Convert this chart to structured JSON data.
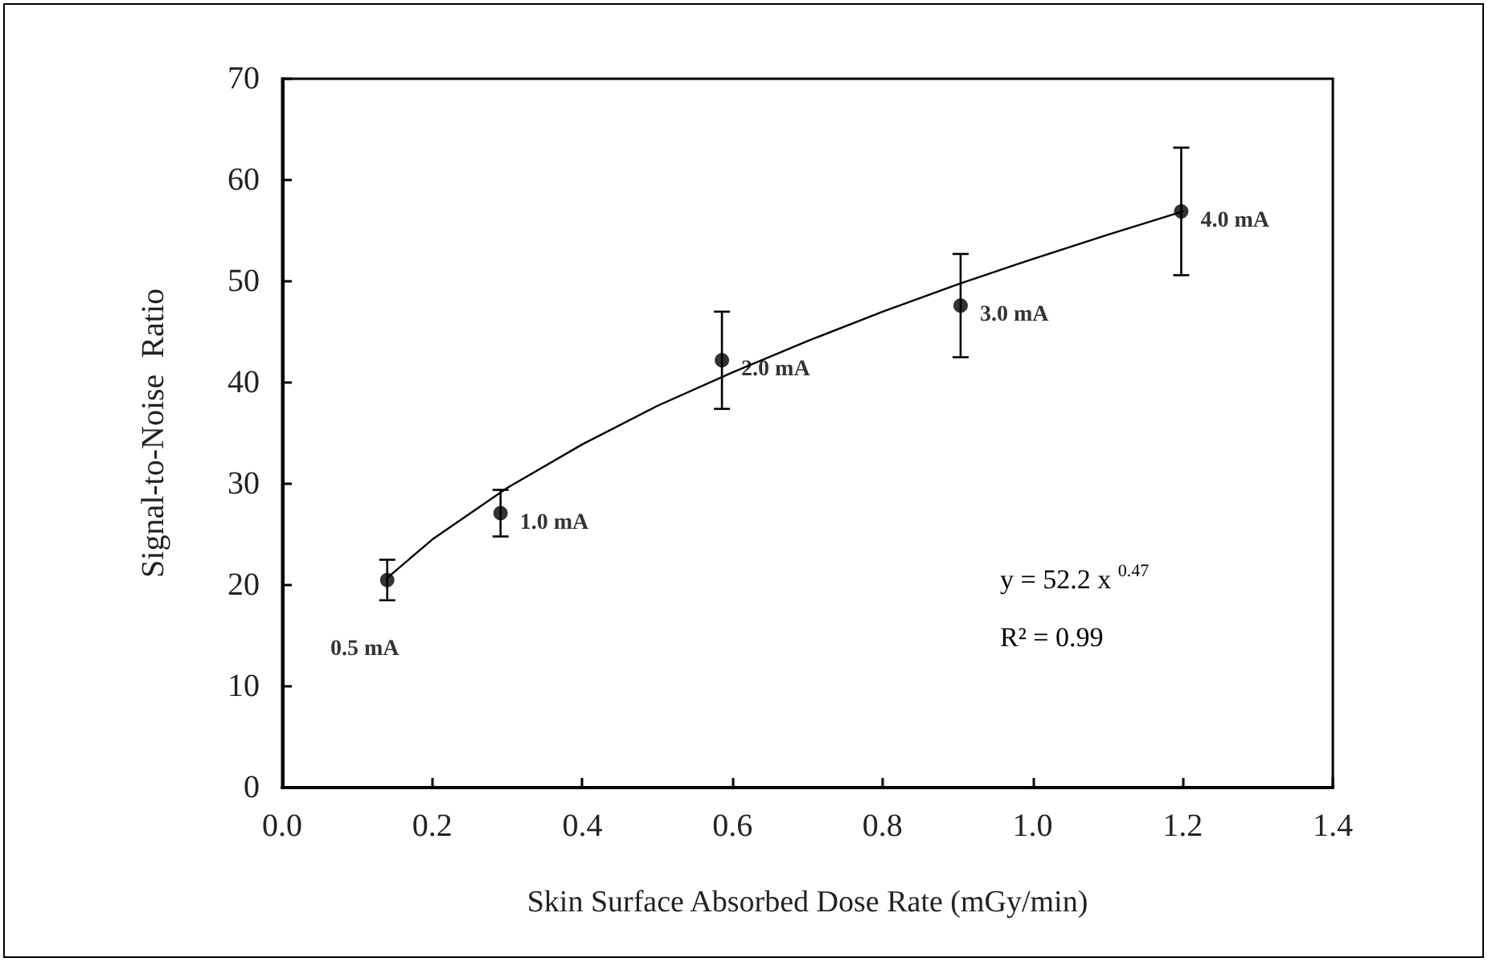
{
  "chart_data": {
    "type": "scatter",
    "xlabel": "Skin Surface Absorbed Dose Rate (mGy/min)",
    "ylabel": "Signal-to-Noise  Ratio",
    "series": [
      {
        "color": "#000000",
        "x": [
          0.14,
          0.291,
          0.586,
          0.904,
          1.198
        ],
        "values": [
          20.5,
          27.1,
          42.2,
          47.6,
          56.9
        ],
        "errors": [
          2.0,
          2.3,
          4.8,
          5.1,
          6.3
        ]
      },
      {
        "type": "line",
        "marker": "none",
        "color": "#000000",
        "x": [
          0.14,
          0.2,
          0.3,
          0.4,
          0.5,
          0.6,
          0.7,
          0.8,
          0.9,
          1.0,
          1.1,
          1.2
        ],
        "values": [
          20.7,
          24.5,
          29.6,
          33.9,
          37.7,
          41.0,
          44.1,
          47.0,
          49.7,
          52.2,
          54.6,
          56.9
        ]
      }
    ],
    "xlim": [
      0,
      1.4
    ],
    "xticks": [
      {
        "value": 0,
        "label": "0.0"
      },
      0.2,
      0.4,
      0.6,
      0.8,
      {
        "value": 1,
        "label": "1.0"
      },
      1.2,
      1.4
    ],
    "ylim": [
      0,
      70
    ],
    "yticks": [
      0,
      10,
      20,
      30,
      40,
      50,
      60,
      70
    ],
    "grid": false,
    "marker": "circle",
    "line_style": "solid",
    "annotations": [
      {
        "text": "0.5 mA",
        "x": 0.14,
        "y": 20.5
      },
      {
        "text": "1.0 mA",
        "x": 0.291,
        "y": 27.1
      },
      {
        "text": "2.0 mA",
        "x": 0.586,
        "y": 42.2
      },
      {
        "text": "3.0 mA",
        "x": 0.904,
        "y": 47.6
      },
      {
        "text": "4.0 mA",
        "x": 1.198,
        "y": 56.9
      },
      "y = 52.2 x $^{0.47}$",
      "R² = 0.99"
    ]
  }
}
